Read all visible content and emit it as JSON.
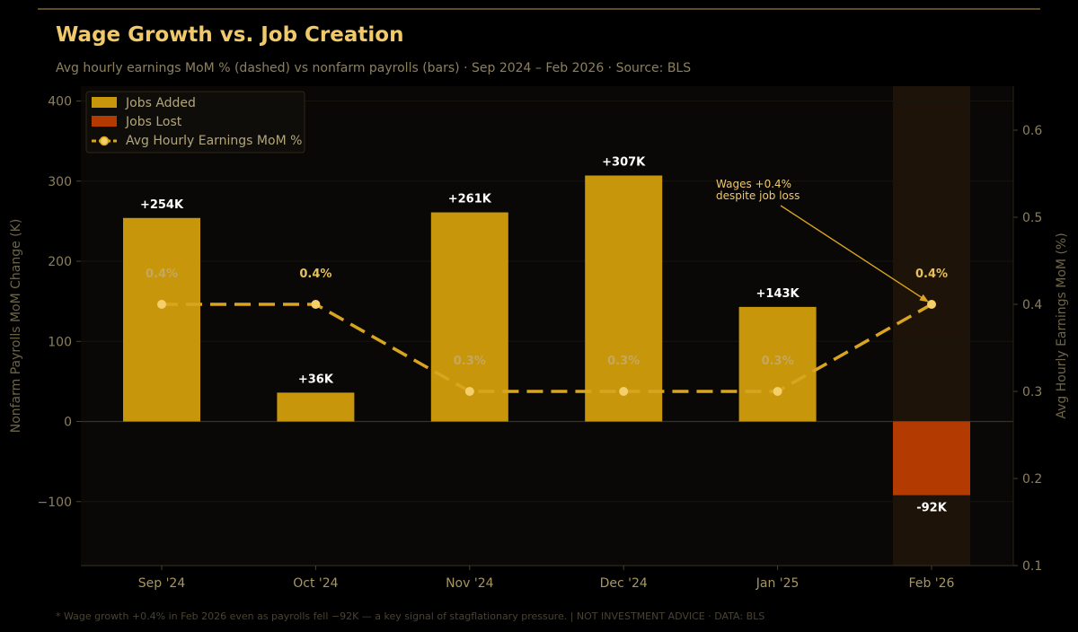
{
  "chart_data": {
    "type": "bar",
    "title": "Wage Growth vs. Job Creation",
    "subtitle": "Avg hourly earnings MoM % (dashed) vs nonfarm payrolls (bars) · Sep 2024 – Feb 2026 · Source: BLS",
    "categories": [
      "Sep '24",
      "Oct '24",
      "Nov '24",
      "Dec '24",
      "Jan '25",
      "Feb '26"
    ],
    "series": [
      {
        "name": "Nonfarm Payrolls MoM Change (K)",
        "values": [
          254,
          36,
          261,
          307,
          143,
          -92
        ],
        "labels": [
          "+254K",
          "+36K",
          "+261K",
          "+307K",
          "+143K",
          "-92K"
        ]
      },
      {
        "name": "Avg Hourly Earnings MoM %",
        "values": [
          0.4,
          0.4,
          0.3,
          0.3,
          0.3,
          0.4
        ],
        "labels": [
          "0.4%",
          "0.4%",
          "0.3%",
          "0.3%",
          "0.3%",
          "0.4%"
        ]
      }
    ],
    "ylabel": "Nonfarm Payrolls MoM Change (K)",
    "ylim": [
      -180,
      420
    ],
    "yticks": [
      -100,
      0,
      100,
      200,
      300,
      400
    ],
    "ytick_labels": [
      "−100",
      "0",
      "100",
      "200",
      "300",
      "400"
    ],
    "y2label": "Avg Hourly Earnings MoM (%)",
    "y2lim": [
      0.1,
      0.65
    ],
    "y2ticks": [
      0.1,
      0.2,
      0.3,
      0.4,
      0.5,
      0.6
    ],
    "y2tick_labels": [
      "0.1",
      "0.2",
      "0.3",
      "0.4",
      "0.5",
      "0.6"
    ],
    "legend": {
      "position": "top-left",
      "entries": [
        "Jobs Added",
        "Jobs Lost",
        "Avg Hourly Earnings MoM %"
      ]
    },
    "highlight_category": "Feb '26",
    "annotation": {
      "text_lines": [
        "Wages +0.4%",
        "despite job loss"
      ],
      "target_category": "Feb '26",
      "target_value": 0.4
    },
    "colors": {
      "jobs_added": "#c8960a",
      "jobs_lost": "#b33a00",
      "wage_line": "#d9a520",
      "wage_marker": "#f5cf6a",
      "highlight_band": "#1e1308"
    }
  },
  "footer": "* Wage growth +0.4% in Feb 2026 even as payrolls fell −92K — a key signal of stagflationary pressure.  |  NOT INVESTMENT ADVICE · DATA: BLS"
}
